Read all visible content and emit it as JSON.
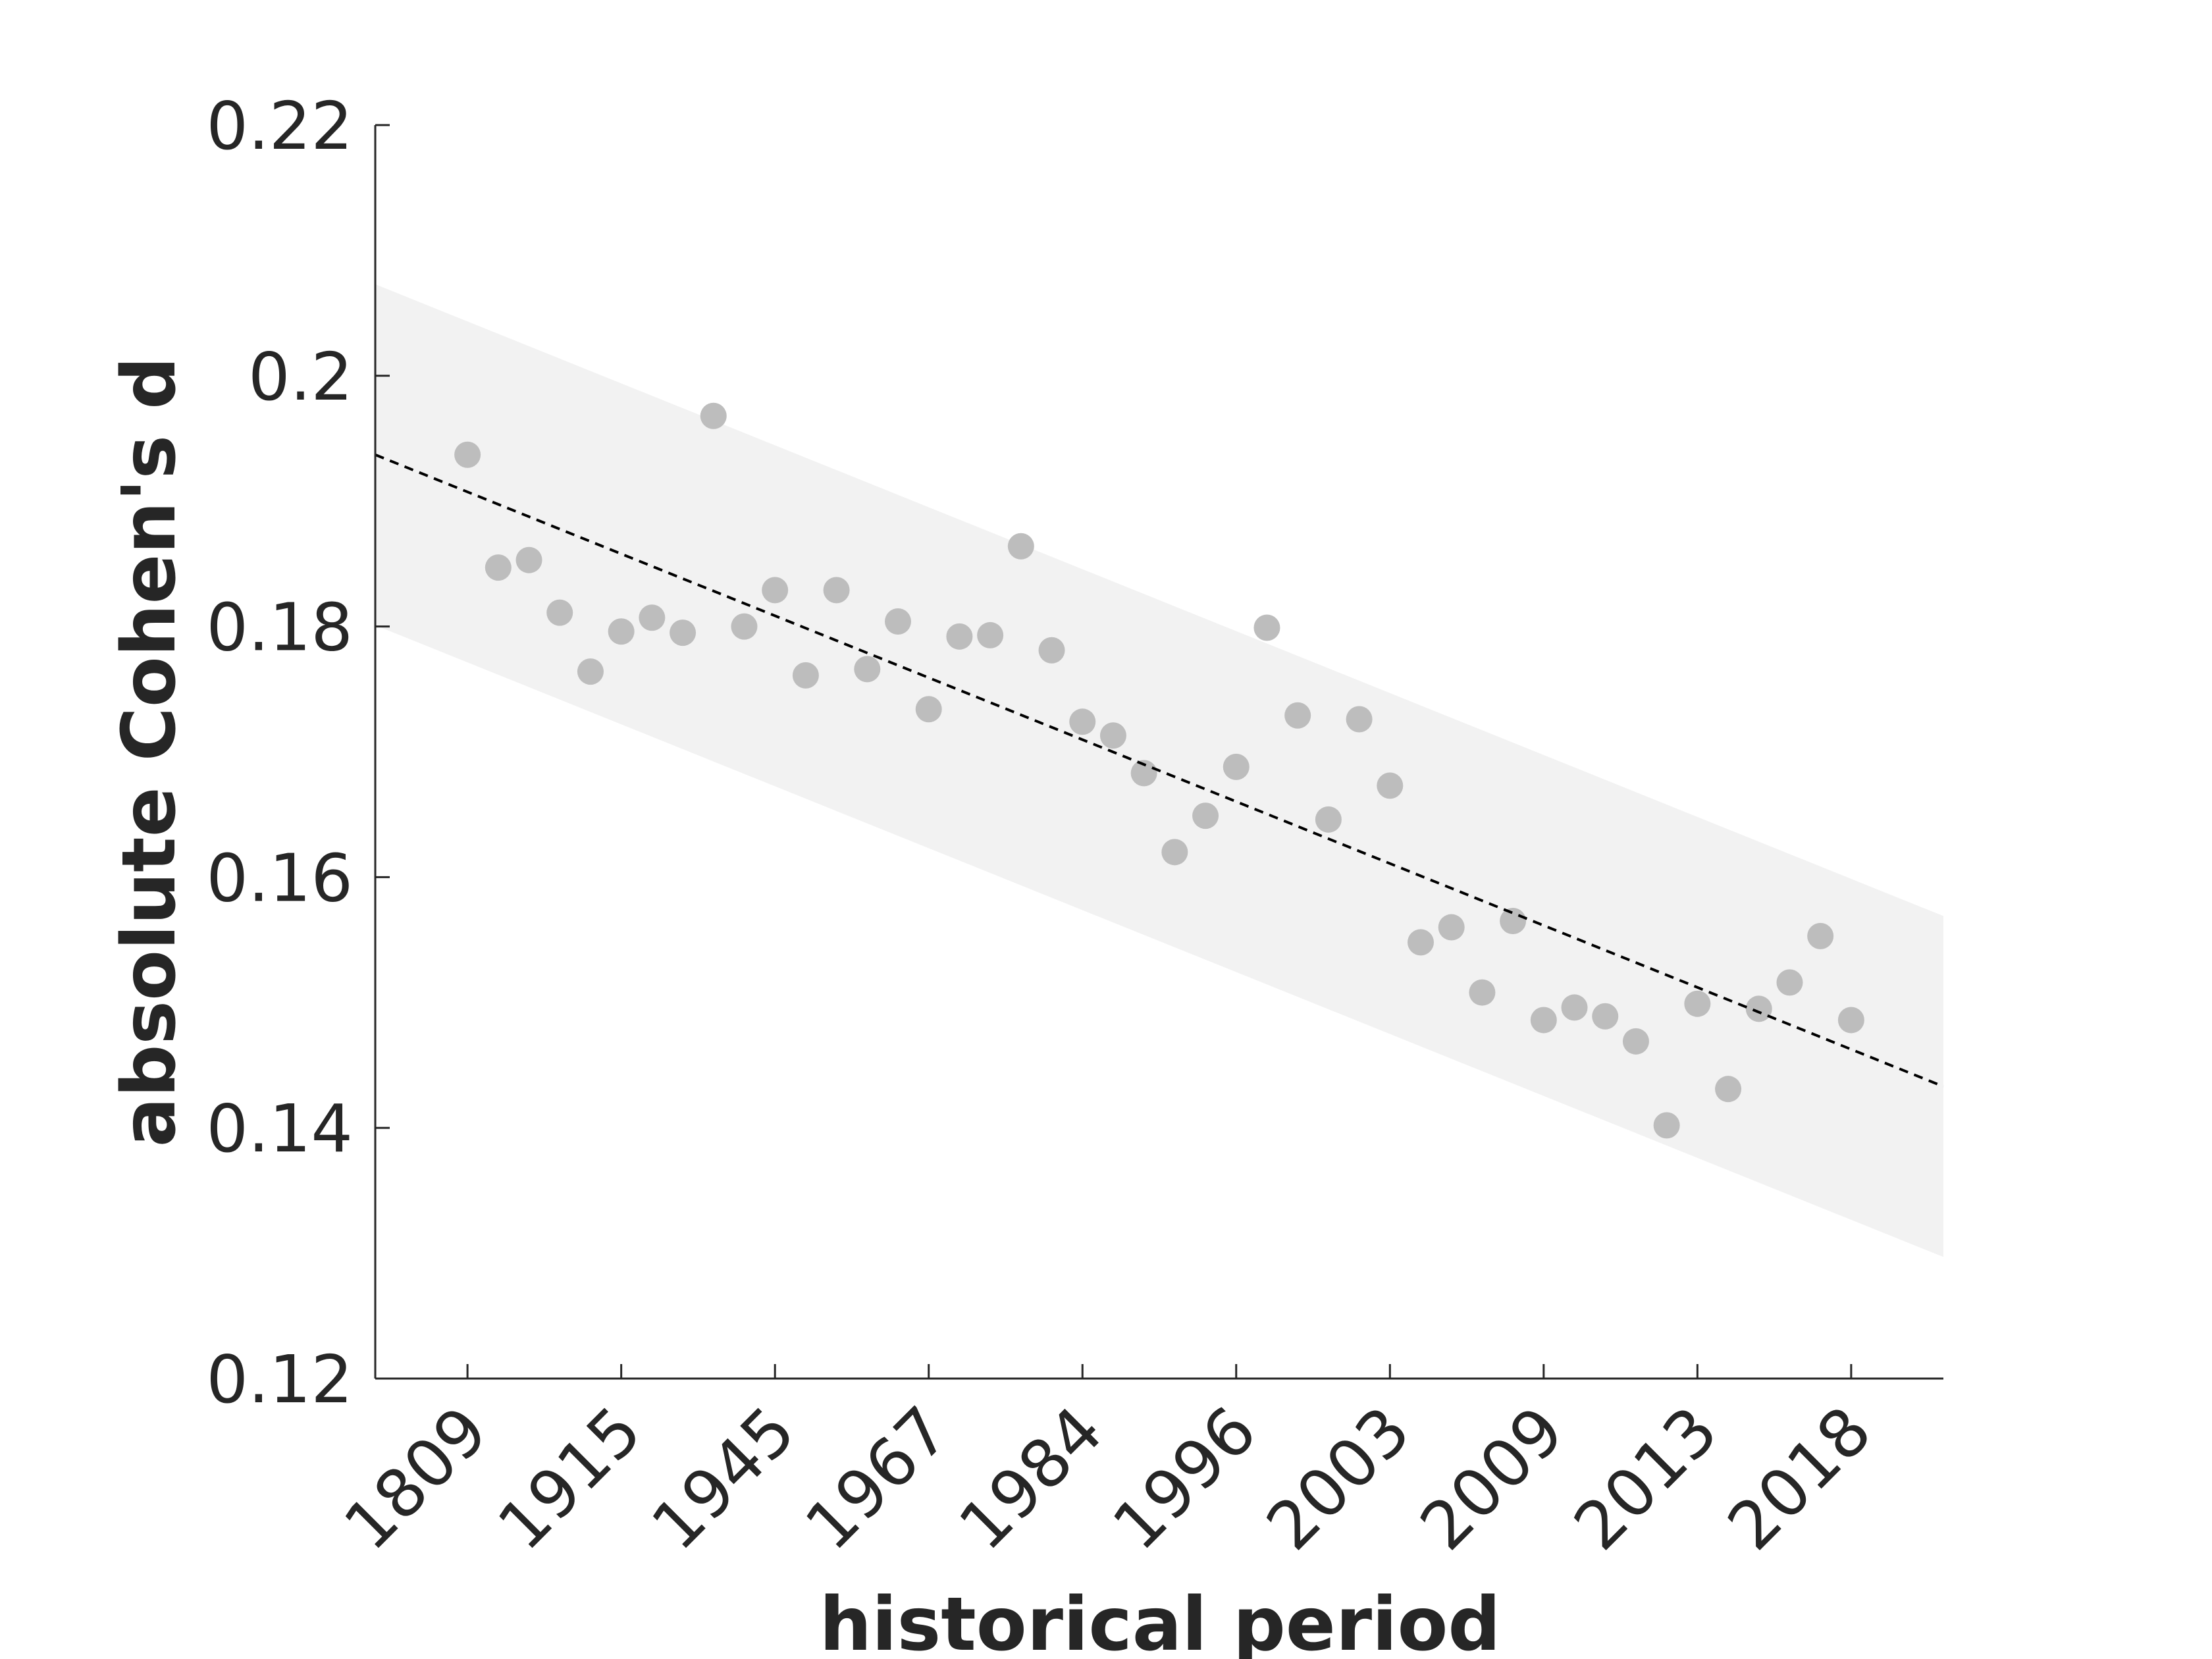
{
  "chart_data": {
    "type": "scatter",
    "title": "",
    "xlabel": "historical period",
    "ylabel": "absolute Cohen's d",
    "ylim": [
      0.12,
      0.22
    ],
    "yticks": [
      "0.12",
      "0.14",
      "0.16",
      "0.18",
      "0.2",
      "0.22"
    ],
    "xlim": [
      -2,
      49
    ],
    "xticks": [
      {
        "index": 1,
        "label": "1809"
      },
      {
        "index": 6,
        "label": "1915"
      },
      {
        "index": 11,
        "label": "1945"
      },
      {
        "index": 16,
        "label": "1967"
      },
      {
        "index": 21,
        "label": "1984"
      },
      {
        "index": 26,
        "label": "1996"
      },
      {
        "index": 31,
        "label": "2003"
      },
      {
        "index": 36,
        "label": "2009"
      },
      {
        "index": 41,
        "label": "2013"
      },
      {
        "index": 46,
        "label": "2018"
      }
    ],
    "grid": false,
    "colors": {
      "points": "#bdbdbd",
      "band": "#f2f2f2",
      "trend": "#000000",
      "axis": "#262626"
    },
    "series": [
      {
        "kind": "points",
        "x": [
          1,
          2,
          3,
          4,
          5,
          6,
          7,
          8,
          9,
          10,
          11,
          12,
          13,
          14,
          15,
          16,
          17,
          18,
          19,
          20,
          21,
          22,
          23,
          24,
          25,
          26,
          27,
          28,
          29,
          30,
          31,
          32,
          33,
          34,
          35,
          36,
          37,
          38,
          39,
          40,
          41,
          42,
          43,
          44,
          45,
          46
        ],
        "y": [
          0.1937,
          0.1847,
          0.1853,
          0.1811,
          0.1764,
          0.1796,
          0.1807,
          0.1795,
          0.1968,
          0.18,
          0.1829,
          0.1761,
          0.1829,
          0.1766,
          0.1804,
          0.1734,
          0.1792,
          0.1793,
          0.1864,
          0.1781,
          0.1724,
          0.1713,
          0.1683,
          0.162,
          0.1649,
          0.1688,
          0.1799,
          0.1729,
          0.1646,
          0.1726,
          0.1673,
          0.1548,
          0.156,
          0.1508,
          0.1565,
          0.1486,
          0.1496,
          0.1489,
          0.1469,
          0.1402,
          0.1499,
          0.1431,
          0.1495,
          0.1516,
          0.1553,
          0.1486
        ]
      },
      {
        "kind": "trend",
        "x": [
          -2,
          49
        ],
        "y": [
          0.1937,
          0.1433
        ]
      },
      {
        "kind": "band",
        "x": [
          -2,
          49
        ],
        "upper": [
          0.2073,
          0.1569
        ],
        "lower": [
          0.1801,
          0.1297
        ]
      }
    ]
  }
}
